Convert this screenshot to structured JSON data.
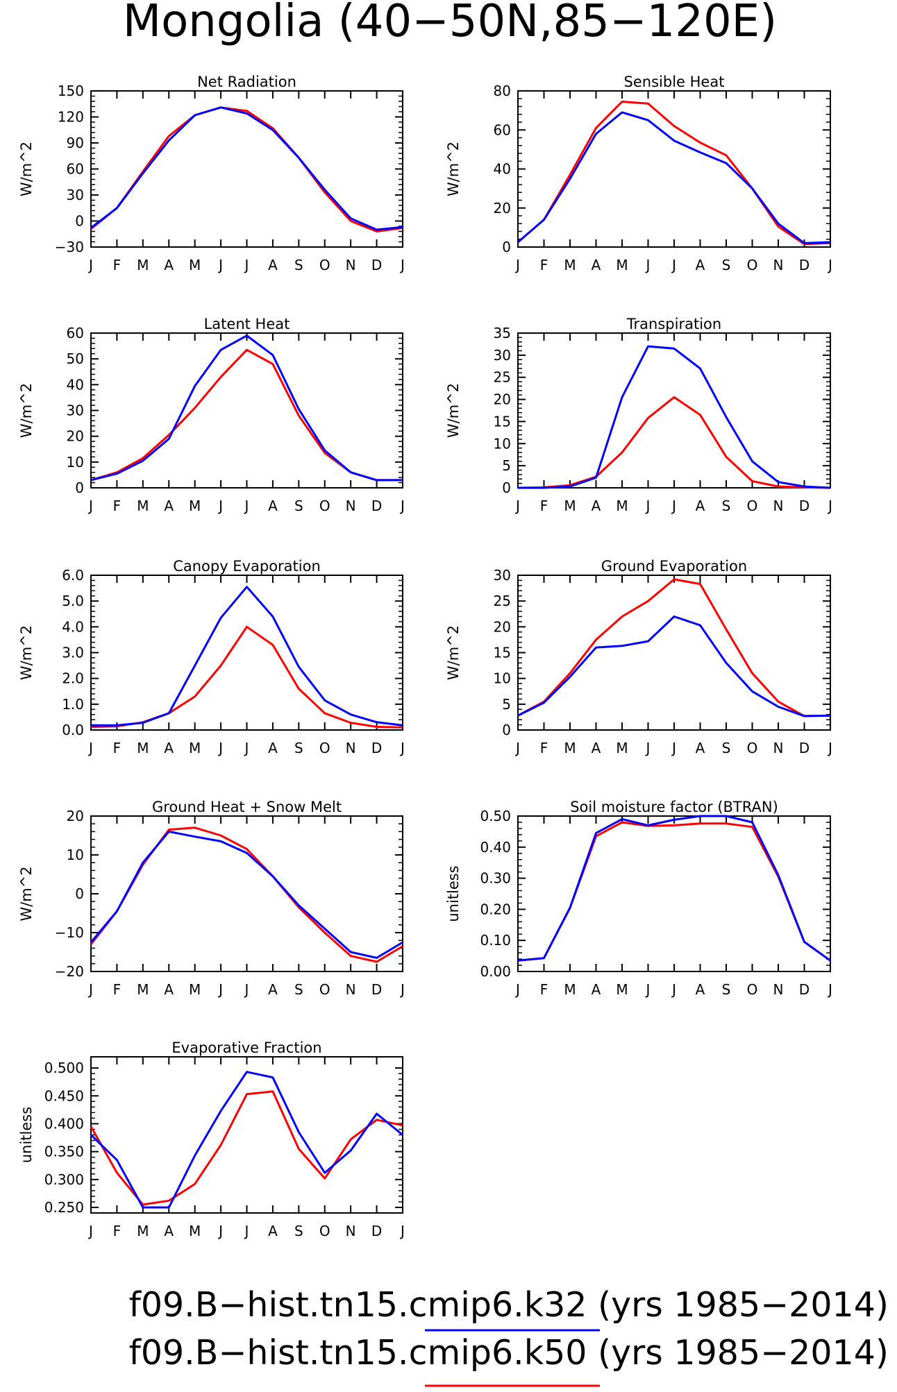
{
  "title": "Mongolia (40−50N,85−120E)",
  "colors": {
    "k32": "#0000ff",
    "k50": "#ff0000"
  },
  "legend": [
    {
      "label": "f09.B−hist.tn15.cmip6.k32 (yrs 1985−2014)",
      "color": "#0000ff"
    },
    {
      "label": "f09.B−hist.tn15.cmip6.k50 (yrs 1985−2014)",
      "color": "#ff0000"
    }
  ],
  "chart_data": [
    {
      "type": "line",
      "title": "Net Radiation",
      "ylabel": "W/m^2",
      "xlabel": "",
      "categories": [
        "J",
        "F",
        "M",
        "A",
        "M",
        "J",
        "J",
        "A",
        "S",
        "O",
        "N",
        "D",
        "J"
      ],
      "ylim": [
        -30,
        150
      ],
      "yticks": [
        -30,
        0,
        30,
        60,
        90,
        120,
        150
      ],
      "yticklabels": [
        "−30",
        "0",
        "30",
        "60",
        "90",
        "120",
        "150"
      ],
      "series": [
        {
          "color": "#ff0000",
          "values": [
            -9,
            15,
            57,
            98,
            122,
            131,
            127,
            107,
            73,
            33,
            0,
            -12,
            -8
          ]
        },
        {
          "color": "#0000ff",
          "values": [
            -8,
            15,
            55,
            93,
            122,
            131,
            124,
            105,
            73,
            36,
            3,
            -10,
            -7
          ]
        }
      ]
    },
    {
      "type": "line",
      "title": "Sensible Heat",
      "ylabel": "W/m^2",
      "xlabel": "",
      "categories": [
        "J",
        "F",
        "M",
        "A",
        "M",
        "J",
        "J",
        "A",
        "S",
        "O",
        "N",
        "D",
        "J"
      ],
      "ylim": [
        0,
        80
      ],
      "yticks": [
        0,
        20,
        40,
        60,
        80
      ],
      "yticklabels": [
        "0",
        "20",
        "40",
        "60",
        "80"
      ],
      "series": [
        {
          "color": "#ff0000",
          "values": [
            2.5,
            14,
            37,
            61,
            74.5,
            73.5,
            62,
            53.5,
            47,
            30,
            10.5,
            1.5,
            2
          ]
        },
        {
          "color": "#0000ff",
          "values": [
            2.5,
            14,
            35,
            58,
            69,
            65,
            54.5,
            48.5,
            43,
            30,
            12,
            2,
            2.5
          ]
        }
      ]
    },
    {
      "type": "line",
      "title": "Latent Heat",
      "ylabel": "W/m^2",
      "xlabel": "",
      "categories": [
        "J",
        "F",
        "M",
        "A",
        "M",
        "J",
        "J",
        "A",
        "S",
        "O",
        "N",
        "D",
        "J"
      ],
      "ylim": [
        0,
        60
      ],
      "yticks": [
        0,
        10,
        20,
        30,
        40,
        50,
        60
      ],
      "yticklabels": [
        "0",
        "10",
        "20",
        "30",
        "40",
        "50",
        "60"
      ],
      "series": [
        {
          "color": "#ff0000",
          "values": [
            3,
            6,
            11.5,
            20.5,
            31,
            43,
            53.5,
            48,
            28,
            13.5,
            6,
            3,
            3
          ]
        },
        {
          "color": "#0000ff",
          "values": [
            3,
            5.5,
            10.5,
            19,
            39.5,
            53.5,
            59,
            51.5,
            30.5,
            14.5,
            6,
            3,
            3
          ]
        }
      ]
    },
    {
      "type": "line",
      "title": "Transpiration",
      "ylabel": "W/m^2",
      "xlabel": "",
      "categories": [
        "J",
        "F",
        "M",
        "A",
        "M",
        "J",
        "J",
        "A",
        "S",
        "O",
        "N",
        "D",
        "J"
      ],
      "ylim": [
        0,
        35
      ],
      "yticks": [
        0,
        5,
        10,
        15,
        20,
        25,
        30,
        35
      ],
      "yticklabels": [
        "0",
        "5",
        "10",
        "15",
        "20",
        "25",
        "30",
        "35"
      ],
      "series": [
        {
          "color": "#ff0000",
          "values": [
            0,
            0.1,
            0.6,
            2.5,
            8,
            15.8,
            20.5,
            16.5,
            7,
            1.5,
            0.3,
            0.1,
            0
          ]
        },
        {
          "color": "#0000ff",
          "values": [
            0,
            0,
            0.3,
            2.3,
            20.5,
            32,
            31.5,
            27,
            16,
            6,
            1.3,
            0.3,
            0
          ]
        }
      ]
    },
    {
      "type": "line",
      "title": "Canopy Evaporation",
      "ylabel": "W/m^2",
      "xlabel": "",
      "categories": [
        "J",
        "F",
        "M",
        "A",
        "M",
        "J",
        "J",
        "A",
        "S",
        "O",
        "N",
        "D",
        "J"
      ],
      "ylim": [
        0,
        6
      ],
      "yticks": [
        0,
        1,
        2,
        3,
        4,
        5,
        6
      ],
      "yticklabels": [
        "0.0",
        "1.0",
        "2.0",
        "3.0",
        "4.0",
        "5.0",
        "6.0"
      ],
      "series": [
        {
          "color": "#ff0000",
          "values": [
            0.12,
            0.14,
            0.3,
            0.65,
            1.3,
            2.5,
            4.0,
            3.3,
            1.6,
            0.65,
            0.28,
            0.12,
            0.1
          ]
        },
        {
          "color": "#0000ff",
          "values": [
            0.18,
            0.18,
            0.28,
            0.65,
            2.5,
            4.35,
            5.55,
            4.4,
            2.45,
            1.15,
            0.6,
            0.3,
            0.18
          ]
        }
      ]
    },
    {
      "type": "line",
      "title": "Ground Evaporation",
      "ylabel": "W/m^2",
      "xlabel": "",
      "categories": [
        "J",
        "F",
        "M",
        "A",
        "M",
        "J",
        "J",
        "A",
        "S",
        "O",
        "N",
        "D",
        "J"
      ],
      "ylim": [
        0,
        30
      ],
      "yticks": [
        0,
        5,
        10,
        15,
        20,
        25,
        30
      ],
      "yticklabels": [
        "0",
        "5",
        "10",
        "15",
        "20",
        "25",
        "30"
      ],
      "series": [
        {
          "color": "#ff0000",
          "values": [
            2.8,
            5.5,
            11,
            17.5,
            22,
            25,
            29.2,
            28.3,
            19.5,
            11,
            5.5,
            2.7,
            2.8
          ]
        },
        {
          "color": "#0000ff",
          "values": [
            2.8,
            5.3,
            10.3,
            16,
            16.3,
            17.2,
            22,
            20.3,
            13,
            7.5,
            4.5,
            2.7,
            2.8
          ]
        }
      ]
    },
    {
      "type": "line",
      "title": "Ground Heat + Snow Melt",
      "ylabel": "W/m^2",
      "xlabel": "",
      "categories": [
        "J",
        "F",
        "M",
        "A",
        "M",
        "J",
        "J",
        "A",
        "S",
        "O",
        "N",
        "D",
        "J"
      ],
      "ylim": [
        -20,
        20
      ],
      "yticks": [
        -20,
        -10,
        0,
        10,
        20
      ],
      "yticklabels": [
        "−20",
        "−10",
        "0",
        "10",
        "20"
      ],
      "series": [
        {
          "color": "#ff0000",
          "values": [
            -13,
            -4.5,
            7.5,
            16.5,
            17,
            15,
            11.5,
            4.5,
            -3.5,
            -10,
            -16,
            -17.5,
            -13.5
          ]
        },
        {
          "color": "#0000ff",
          "values": [
            -12.5,
            -4.5,
            8,
            16,
            14.7,
            13.5,
            10.5,
            4.5,
            -3,
            -9,
            -15,
            -16.5,
            -12.5
          ]
        }
      ]
    },
    {
      "type": "line",
      "title": "Soil moisture factor (BTRAN)",
      "ylabel": "unitless",
      "xlabel": "",
      "categories": [
        "J",
        "F",
        "M",
        "A",
        "M",
        "J",
        "J",
        "A",
        "S",
        "O",
        "N",
        "D",
        "J"
      ],
      "ylim": [
        0,
        0.5
      ],
      "yticks": [
        0,
        0.1,
        0.2,
        0.3,
        0.4,
        0.5
      ],
      "yticklabels": [
        "0.00",
        "0.10",
        "0.20",
        "0.30",
        "0.40",
        "0.50"
      ],
      "series": [
        {
          "color": "#ff0000",
          "values": [
            0.035,
            0.043,
            0.205,
            0.435,
            0.48,
            0.468,
            0.47,
            0.476,
            0.476,
            0.465,
            0.305,
            0.095,
            0.035
          ]
        },
        {
          "color": "#0000ff",
          "values": [
            0.035,
            0.043,
            0.205,
            0.445,
            0.49,
            0.47,
            0.488,
            0.5,
            0.5,
            0.48,
            0.31,
            0.095,
            0.035
          ]
        }
      ]
    },
    {
      "type": "line",
      "title": "Evaporative Fraction",
      "ylabel": "unitless",
      "xlabel": "",
      "categories": [
        "J",
        "F",
        "M",
        "A",
        "M",
        "J",
        "J",
        "A",
        "S",
        "O",
        "N",
        "D",
        "J"
      ],
      "ylim": [
        0.24,
        0.52
      ],
      "yticks": [
        0.25,
        0.3,
        0.35,
        0.4,
        0.45,
        0.5
      ],
      "yticklabels": [
        "0.250",
        "0.300",
        "0.350",
        "0.400",
        "0.450",
        "0.500"
      ],
      "series": [
        {
          "color": "#ff0000",
          "values": [
            0.395,
            0.312,
            0.255,
            0.262,
            0.292,
            0.362,
            0.453,
            0.458,
            0.355,
            0.302,
            0.372,
            0.407,
            0.397
          ]
        },
        {
          "color": "#0000ff",
          "values": [
            0.38,
            0.335,
            0.25,
            0.25,
            0.343,
            0.423,
            0.493,
            0.483,
            0.385,
            0.312,
            0.352,
            0.418,
            0.38
          ]
        }
      ]
    }
  ]
}
